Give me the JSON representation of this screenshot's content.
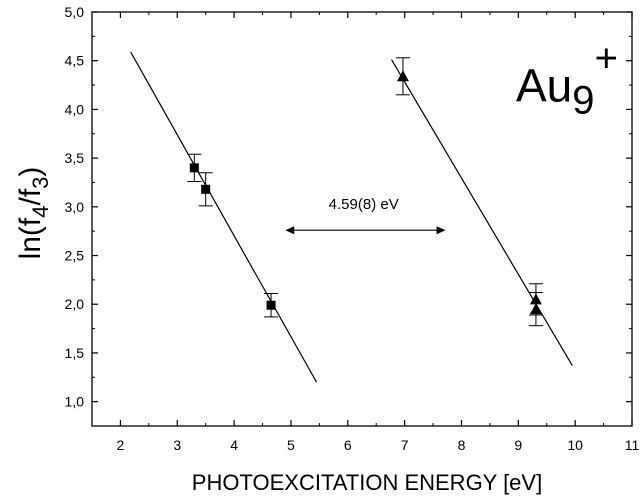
{
  "chart_data": {
    "type": "scatter",
    "title": "",
    "xlabel": "PHOTOEXCITATION ENERGY [eV]",
    "ylabel": {
      "base": "ln(f",
      "sub1": "4",
      "slash": "/f",
      "sub2": "3",
      "close": ")"
    },
    "xlim": [
      1.5,
      11
    ],
    "ylim": [
      0.75,
      5.0
    ],
    "x_ticks": [
      2,
      3,
      4,
      5,
      6,
      7,
      8,
      9,
      10,
      11
    ],
    "y_ticks": [
      1.0,
      1.5,
      2.0,
      2.5,
      3.0,
      3.5,
      4.0,
      4.5,
      5.0
    ],
    "y_tick_labels": [
      "1,0",
      "1,5",
      "2,0",
      "2,5",
      "3,0",
      "3,5",
      "4,0",
      "4,5",
      "5,0"
    ],
    "grid": false,
    "series": [
      {
        "marker": "square",
        "points": [
          {
            "x": 3.3,
            "y": 3.4,
            "err": 0.14
          },
          {
            "x": 3.5,
            "y": 3.18,
            "err": 0.17
          },
          {
            "x": 4.65,
            "y": 1.99,
            "err": 0.12
          }
        ],
        "fit_line": [
          [
            2.18,
            4.59
          ],
          [
            5.45,
            1.2
          ]
        ]
      },
      {
        "marker": "triangle",
        "points": [
          {
            "x": 6.97,
            "y": 4.34,
            "err": 0.19
          },
          {
            "x": 9.31,
            "y": 2.05,
            "err": 0.16
          },
          {
            "x": 9.31,
            "y": 1.95,
            "err": 0.17
          }
        ],
        "fit_line": [
          [
            6.77,
            4.51
          ],
          [
            9.95,
            1.37
          ]
        ]
      }
    ],
    "annotations": {
      "arrow": {
        "text": "4.59(8) eV",
        "x1": 4.9,
        "x2": 7.72,
        "y": 2.76,
        "text_x": 6.28,
        "text_y": 2.98
      },
      "species": {
        "base": "Au",
        "sub": "9",
        "sup": "+",
        "x": 9.65,
        "y": 4.08
      }
    }
  }
}
